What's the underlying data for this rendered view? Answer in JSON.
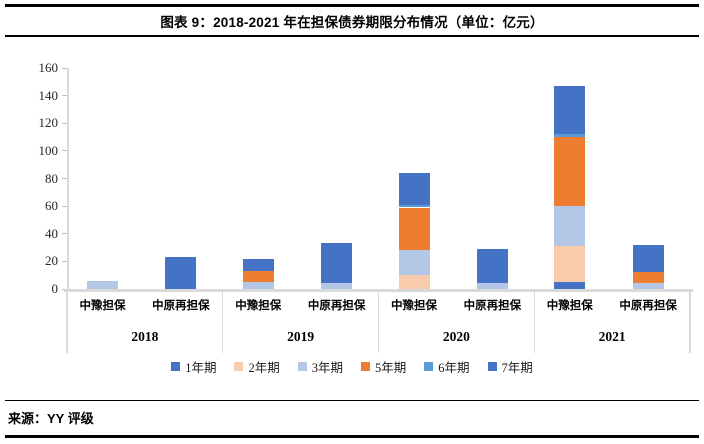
{
  "header": {
    "title": "图表 9：2018-2021 年在担保债券期限分布情况（单位：亿元）"
  },
  "footer": {
    "source": "来源：YY 评级"
  },
  "chart_data": {
    "type": "bar",
    "stacked": true,
    "title": "图表 9：2018-2021 年在担保债券期限分布情况（单位：亿元）",
    "unit": "亿元",
    "ylim": [
      0,
      160
    ],
    "yticks": [
      0,
      20,
      40,
      60,
      80,
      100,
      120,
      140,
      160
    ],
    "grid": false,
    "legend_position": "bottom",
    "groups": [
      {
        "year": "2018",
        "members": [
          "中豫担保",
          "中原再担保"
        ]
      },
      {
        "year": "2019",
        "members": [
          "中豫担保",
          "中原再担保"
        ]
      },
      {
        "year": "2020",
        "members": [
          "中豫担保",
          "中原再担保"
        ]
      },
      {
        "year": "2021",
        "members": [
          "中豫担保",
          "中原再担保"
        ]
      }
    ],
    "bar_order": [
      "2018-中豫担保",
      "2018-中原再担保",
      "2019-中豫担保",
      "2019-中原再担保",
      "2020-中豫担保",
      "2020-中原再担保",
      "2021-中豫担保",
      "2021-中原再担保"
    ],
    "series": [
      {
        "name": "1年期",
        "color": "#4472C4",
        "values": [
          0,
          0,
          0,
          0,
          0,
          0,
          5,
          0
        ]
      },
      {
        "name": "2年期",
        "color": "#F8CBAD",
        "values": [
          0,
          0,
          0,
          0,
          10,
          0,
          26,
          0
        ]
      },
      {
        "name": "3年期",
        "color": "#B4C7E7",
        "values": [
          6,
          0,
          5,
          4,
          18,
          4,
          29,
          4
        ]
      },
      {
        "name": "5年期",
        "color": "#ED7D31",
        "values": [
          0,
          0,
          8,
          0,
          31,
          0,
          50,
          8
        ]
      },
      {
        "name": "6年期",
        "color": "#5B9BD5",
        "values": [
          0,
          0,
          0,
          0,
          2,
          0,
          2,
          0
        ]
      },
      {
        "name": "7年期",
        "color": "#4472C4",
        "values": [
          0,
          23,
          9,
          29,
          23,
          25,
          35,
          20
        ]
      }
    ],
    "bar_totals": [
      6,
      23,
      22,
      33,
      84,
      29,
      147,
      32
    ],
    "colors": {
      "axis_line": "#D9D9D9",
      "tick_mark": "#BFBFBF",
      "text": "#000000"
    }
  }
}
